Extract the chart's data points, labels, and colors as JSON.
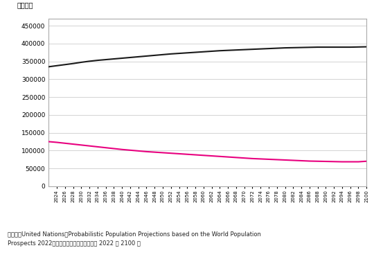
{
  "years": [
    2022,
    2024,
    2026,
    2028,
    2030,
    2032,
    2034,
    2036,
    2038,
    2040,
    2042,
    2044,
    2046,
    2048,
    2050,
    2052,
    2054,
    2056,
    2058,
    2060,
    2062,
    2064,
    2066,
    2068,
    2070,
    2072,
    2074,
    2076,
    2078,
    2080,
    2082,
    2084,
    2086,
    2088,
    2090,
    2092,
    2094,
    2096,
    2098,
    2100
  ],
  "japan": [
    125000,
    123000,
    120500,
    118000,
    115500,
    113000,
    110500,
    108000,
    105500,
    103000,
    101000,
    99000,
    97000,
    95500,
    94000,
    92500,
    91000,
    89500,
    88000,
    86500,
    85000,
    83500,
    82000,
    80500,
    79000,
    77500,
    76500,
    75500,
    74500,
    73500,
    72500,
    71500,
    70500,
    70000,
    69500,
    69000,
    68500,
    68500,
    68500,
    70000
  ],
  "usa": [
    335000,
    338000,
    341000,
    344000,
    347500,
    350500,
    353000,
    355000,
    357000,
    359000,
    361000,
    363000,
    365000,
    367000,
    369000,
    371000,
    372500,
    374000,
    375500,
    377000,
    378500,
    380000,
    381000,
    382000,
    383000,
    384000,
    385000,
    386000,
    387000,
    388000,
    388500,
    389000,
    389500,
    390000,
    390000,
    390000,
    390000,
    390000,
    390500,
    391000
  ],
  "japan_color": "#e8007f",
  "usa_color": "#1a1a1a",
  "ylim": [
    0,
    470000
  ],
  "yticks": [
    0,
    50000,
    100000,
    150000,
    200000,
    250000,
    300000,
    350000,
    400000,
    450000
  ],
  "ylabel": "（千人）",
  "caption_line1": "（出所）United Nations』Probabilistic Population Projections based on the World Population",
  "caption_line2": "Prospects 2022『dirより筆者作成。対象期間は 2022 ～ 2100 年",
  "caption_full": "（出所）United Nations』Probabilistic Population Projections based on the World Population\nProspects 2022『より筆者作成。対象期間は 2022 ～ 2100 年",
  "background_color": "#ffffff",
  "grid_color": "#cccccc",
  "line_width": 1.5,
  "xtick_years": [
    2024,
    2026,
    2028,
    2030,
    2032,
    2034,
    2036,
    2038,
    2040,
    2042,
    2044,
    2046,
    2048,
    2050,
    2052,
    2054,
    2056,
    2058,
    2060,
    2062,
    2064,
    2066,
    2068,
    2070,
    2072,
    2074,
    2076,
    2078,
    2080,
    2082,
    2084,
    2086,
    2088,
    2090,
    2092,
    2094,
    2096,
    2098,
    2100
  ]
}
